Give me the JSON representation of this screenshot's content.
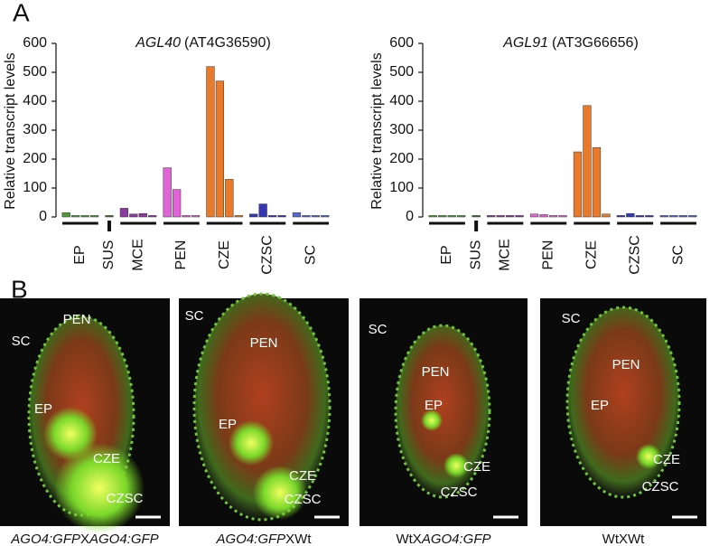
{
  "panel_a_label": "A",
  "panel_b_label": "B",
  "chart_data": [
    {
      "type": "bar",
      "title_italic": "AGL40",
      "title_rest": "(AT4G36590)",
      "ylabel": "Relative transcript levels",
      "ylim": [
        0,
        600
      ],
      "yticks": [
        0,
        100,
        200,
        300,
        400,
        500,
        600
      ],
      "groups": [
        {
          "name": "EP",
          "color": "#4f9a3a",
          "values": [
            15,
            5,
            5,
            5
          ]
        },
        {
          "name": "SUS",
          "color": "#3f6a35",
          "values": [
            5
          ]
        },
        {
          "name": "MCE",
          "color": "#8c3aa0",
          "values": [
            30,
            10,
            12,
            5
          ]
        },
        {
          "name": "PEN",
          "color": "#e064d8",
          "values": [
            170,
            95,
            5,
            5
          ]
        },
        {
          "name": "CZE",
          "color": "#e87a2a",
          "values": [
            520,
            470,
            130,
            5
          ]
        },
        {
          "name": "CZSC",
          "color": "#3636b4",
          "values": [
            10,
            45,
            5,
            5
          ]
        },
        {
          "name": "SC",
          "color": "#5868d4",
          "values": [
            15,
            5,
            5,
            5
          ]
        }
      ]
    },
    {
      "type": "bar",
      "title_italic": "AGL91",
      "title_rest": "(AT3G66656)",
      "ylabel": "Relative transcript levels",
      "ylim": [
        0,
        600
      ],
      "yticks": [
        0,
        100,
        200,
        300,
        400,
        500,
        600
      ],
      "groups": [
        {
          "name": "EP",
          "color": "#4f9a3a",
          "values": [
            5,
            5,
            5,
            5
          ]
        },
        {
          "name": "SUS",
          "color": "#3f6a35",
          "values": [
            5
          ]
        },
        {
          "name": "MCE",
          "color": "#8c3aa0",
          "values": [
            5,
            5,
            5,
            5
          ]
        },
        {
          "name": "PEN",
          "color": "#e064d8",
          "values": [
            10,
            8,
            5,
            5
          ]
        },
        {
          "name": "CZE",
          "color": "#e87a2a",
          "values": [
            225,
            385,
            240,
            10
          ]
        },
        {
          "name": "CZSC",
          "color": "#3636b4",
          "values": [
            5,
            12,
            5,
            5
          ]
        },
        {
          "name": "SC",
          "color": "#5868d4",
          "values": [
            5,
            5,
            5,
            5
          ]
        }
      ]
    }
  ],
  "images": [
    {
      "caption": [
        {
          "text": "AGO4:GFP",
          "italic": true
        },
        {
          "text": "X",
          "italic": false
        },
        {
          "text": "AGO4:GFP",
          "italic": true
        }
      ],
      "labels": [
        "SC",
        "PEN",
        "EP",
        "CZE",
        "CZSC"
      ]
    },
    {
      "caption": [
        {
          "text": "AGO4:GFP",
          "italic": true
        },
        {
          "text": "XWt",
          "italic": false
        }
      ],
      "labels": [
        "SC",
        "PEN",
        "EP",
        "CZE",
        "CZSC"
      ]
    },
    {
      "caption": [
        {
          "text": "WtX",
          "italic": false
        },
        {
          "text": "AGO4:GFP",
          "italic": true
        }
      ],
      "labels": [
        "SC",
        "PEN",
        "EP",
        "CZE",
        "CZSC"
      ]
    },
    {
      "caption": [
        {
          "text": "WtXWt",
          "italic": false
        }
      ],
      "labels": [
        "SC",
        "PEN",
        "EP",
        "CZE",
        "CZSC"
      ]
    }
  ]
}
